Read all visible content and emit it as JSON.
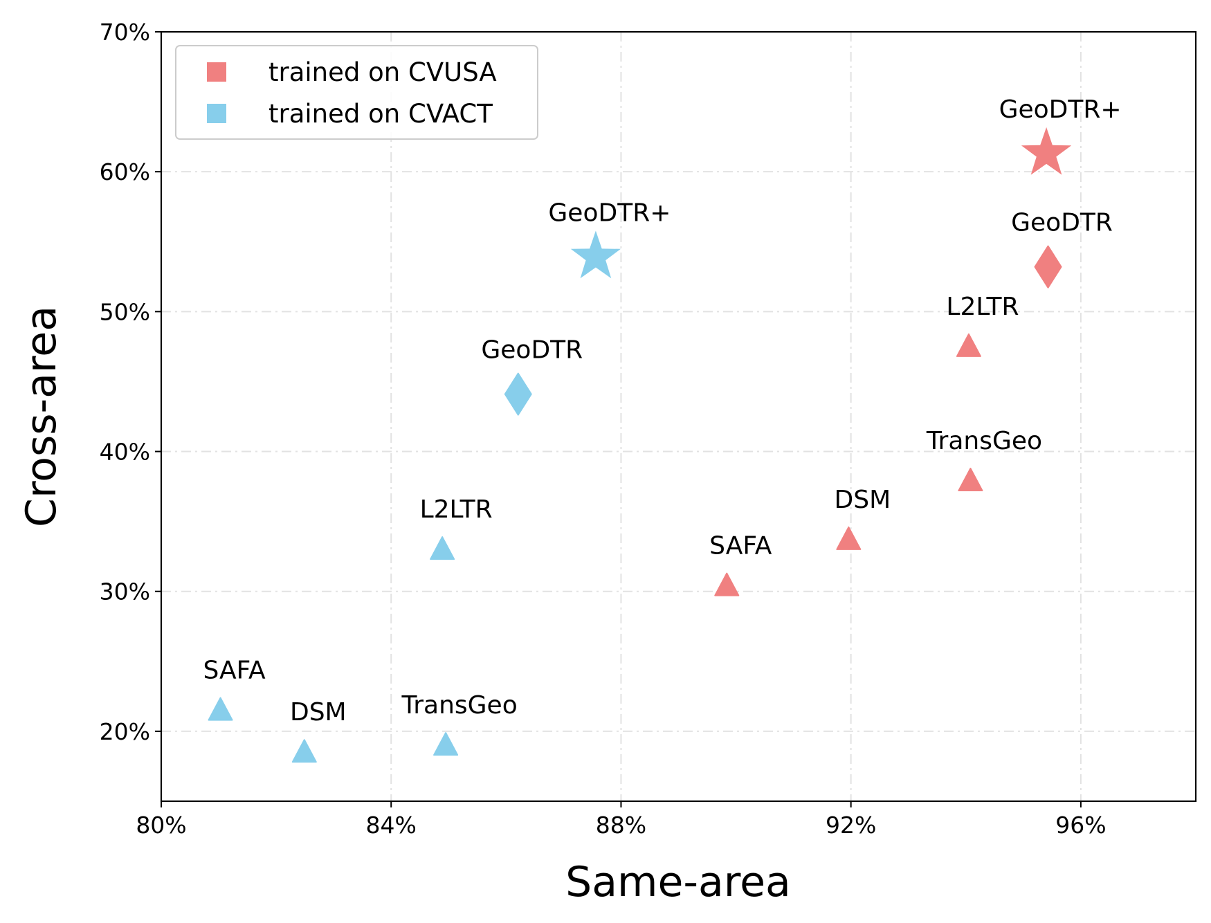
{
  "chart_data": {
    "type": "scatter",
    "title": "",
    "xlabel": "Same-area",
    "ylabel": "Cross-area",
    "xlim": [
      80,
      98
    ],
    "ylim": [
      15,
      70
    ],
    "x_ticks": [
      80,
      84,
      88,
      92,
      96
    ],
    "x_tick_labels": [
      "80%",
      "84%",
      "88%",
      "92%",
      "96%"
    ],
    "y_ticks": [
      20,
      30,
      40,
      50,
      60,
      70
    ],
    "y_tick_labels": [
      "20%",
      "30%",
      "40%",
      "50%",
      "60%",
      "70%"
    ],
    "grid": true,
    "legend_position": "top-left",
    "legend": [
      {
        "label": "trained on CVUSA",
        "color": "#F08080"
      },
      {
        "label": "trained on CVACT",
        "color": "#87CEEB"
      }
    ],
    "series": [
      {
        "name": "trained on CVUSA",
        "color": "#F08080",
        "points": [
          {
            "label": "SAFA",
            "x": 89.84,
            "y": 30.4,
            "marker": "triangle"
          },
          {
            "label": "DSM",
            "x": 91.96,
            "y": 33.7,
            "marker": "triangle"
          },
          {
            "label": "TransGeo",
            "x": 94.08,
            "y": 37.9,
            "marker": "triangle"
          },
          {
            "label": "L2LTR",
            "x": 94.05,
            "y": 47.5,
            "marker": "triangle"
          },
          {
            "label": "GeoDTR",
            "x": 95.43,
            "y": 53.2,
            "marker": "diamond"
          },
          {
            "label": "GeoDTR+",
            "x": 95.4,
            "y": 61.3,
            "marker": "star"
          }
        ]
      },
      {
        "name": "trained on CVACT",
        "color": "#87CEEB",
        "points": [
          {
            "label": "SAFA",
            "x": 81.03,
            "y": 21.5,
            "marker": "triangle"
          },
          {
            "label": "DSM",
            "x": 82.49,
            "y": 18.5,
            "marker": "triangle"
          },
          {
            "label": "TransGeo",
            "x": 84.95,
            "y": 19.0,
            "marker": "triangle"
          },
          {
            "label": "L2LTR",
            "x": 84.89,
            "y": 33.0,
            "marker": "triangle"
          },
          {
            "label": "GeoDTR",
            "x": 86.21,
            "y": 44.1,
            "marker": "diamond"
          },
          {
            "label": "GeoDTR+",
            "x": 87.56,
            "y": 53.9,
            "marker": "star"
          }
        ]
      }
    ]
  }
}
